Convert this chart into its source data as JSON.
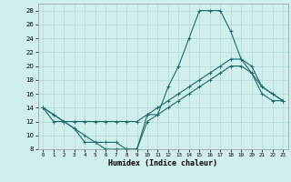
{
  "xlabel": "Humidex (Indice chaleur)",
  "bg_color": "#d0eeec",
  "line_color": "#1a6b6b",
  "grid_color": "#b0d8d5",
  "xlim": [
    -0.5,
    23.5
  ],
  "ylim": [
    8,
    29
  ],
  "xticks": [
    0,
    1,
    2,
    3,
    4,
    5,
    6,
    7,
    8,
    9,
    10,
    11,
    12,
    13,
    14,
    15,
    16,
    17,
    18,
    19,
    20,
    21,
    22,
    23
  ],
  "yticks": [
    8,
    10,
    12,
    14,
    16,
    18,
    20,
    22,
    24,
    26,
    28
  ],
  "line1_x": [
    0,
    1,
    2,
    3,
    4,
    5,
    6,
    7,
    8,
    9,
    10,
    11,
    12,
    13,
    14,
    15,
    16,
    17,
    18,
    19,
    20,
    21,
    22,
    23
  ],
  "line1_y": [
    14,
    13,
    12,
    11,
    9,
    9,
    8,
    8,
    8,
    8,
    13,
    13,
    17,
    20,
    24,
    28,
    28,
    28,
    25,
    21,
    19,
    16,
    15,
    15
  ],
  "line2_x": [
    0,
    1,
    2,
    3,
    4,
    5,
    6,
    7,
    8,
    9,
    10,
    11,
    12,
    13,
    14,
    15,
    16,
    17,
    18,
    19,
    20,
    21,
    22,
    23
  ],
  "line2_y": [
    14,
    13,
    12,
    12,
    12,
    12,
    12,
    12,
    12,
    12,
    13,
    14,
    15,
    16,
    17,
    18,
    19,
    20,
    21,
    21,
    20,
    17,
    16,
    15
  ],
  "line3_x": [
    0,
    1,
    2,
    3,
    4,
    5,
    6,
    7,
    8,
    9,
    10,
    11,
    12,
    13,
    14,
    15,
    16,
    17,
    18,
    19,
    20,
    21,
    22,
    23
  ],
  "line3_y": [
    14,
    12,
    12,
    11,
    10,
    9,
    9,
    9,
    8,
    8,
    12,
    13,
    14,
    15,
    16,
    17,
    18,
    19,
    20,
    20,
    19,
    17,
    16,
    15
  ],
  "marker_size": 3,
  "line_width": 0.8
}
